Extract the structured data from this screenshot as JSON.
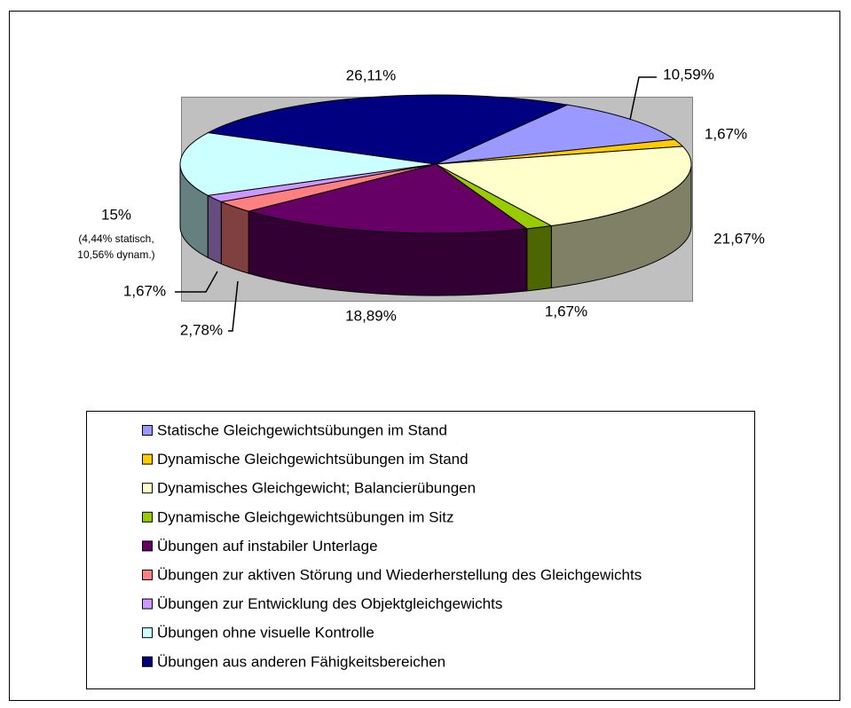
{
  "chart_data": {
    "type": "pie3d",
    "categories": [
      "Statische Gleichgewichtsübungen im Stand",
      "Dynamische Gleichgewichtsübungen im Stand",
      "Dynamisches Gleichgewicht; Balancierübungen",
      "Dynamische Gleichgewichtsübungen im Sitz",
      "Übungen auf instabiler Unterlage",
      "Übungen zur aktiven Störung und Wiederherstellung des Gleichgewichts",
      "Übungen zur Entwicklung des Objektgleichgewichts",
      "Übungen ohne visuelle Kontrolle",
      "Übungen aus anderen Fähigkeitsbereichen"
    ],
    "values": [
      10.59,
      1.67,
      21.67,
      1.67,
      18.89,
      2.78,
      1.67,
      15,
      26.11
    ],
    "value_labels": [
      "10,59%",
      "1,67%",
      "21,67%",
      "1,67%",
      "18,89%",
      "2,78%",
      "1,67%",
      "15%",
      "26,11%"
    ],
    "colors": [
      "#9999ff",
      "#ffcc00",
      "#ffffcc",
      "#99cc00",
      "#660066",
      "#ff8080",
      "#cc99ff",
      "#ccffff",
      "#000080"
    ],
    "annotations": [
      "(4,44% statisch,",
      "10,56% dynam.)"
    ],
    "legend": "bottom"
  }
}
